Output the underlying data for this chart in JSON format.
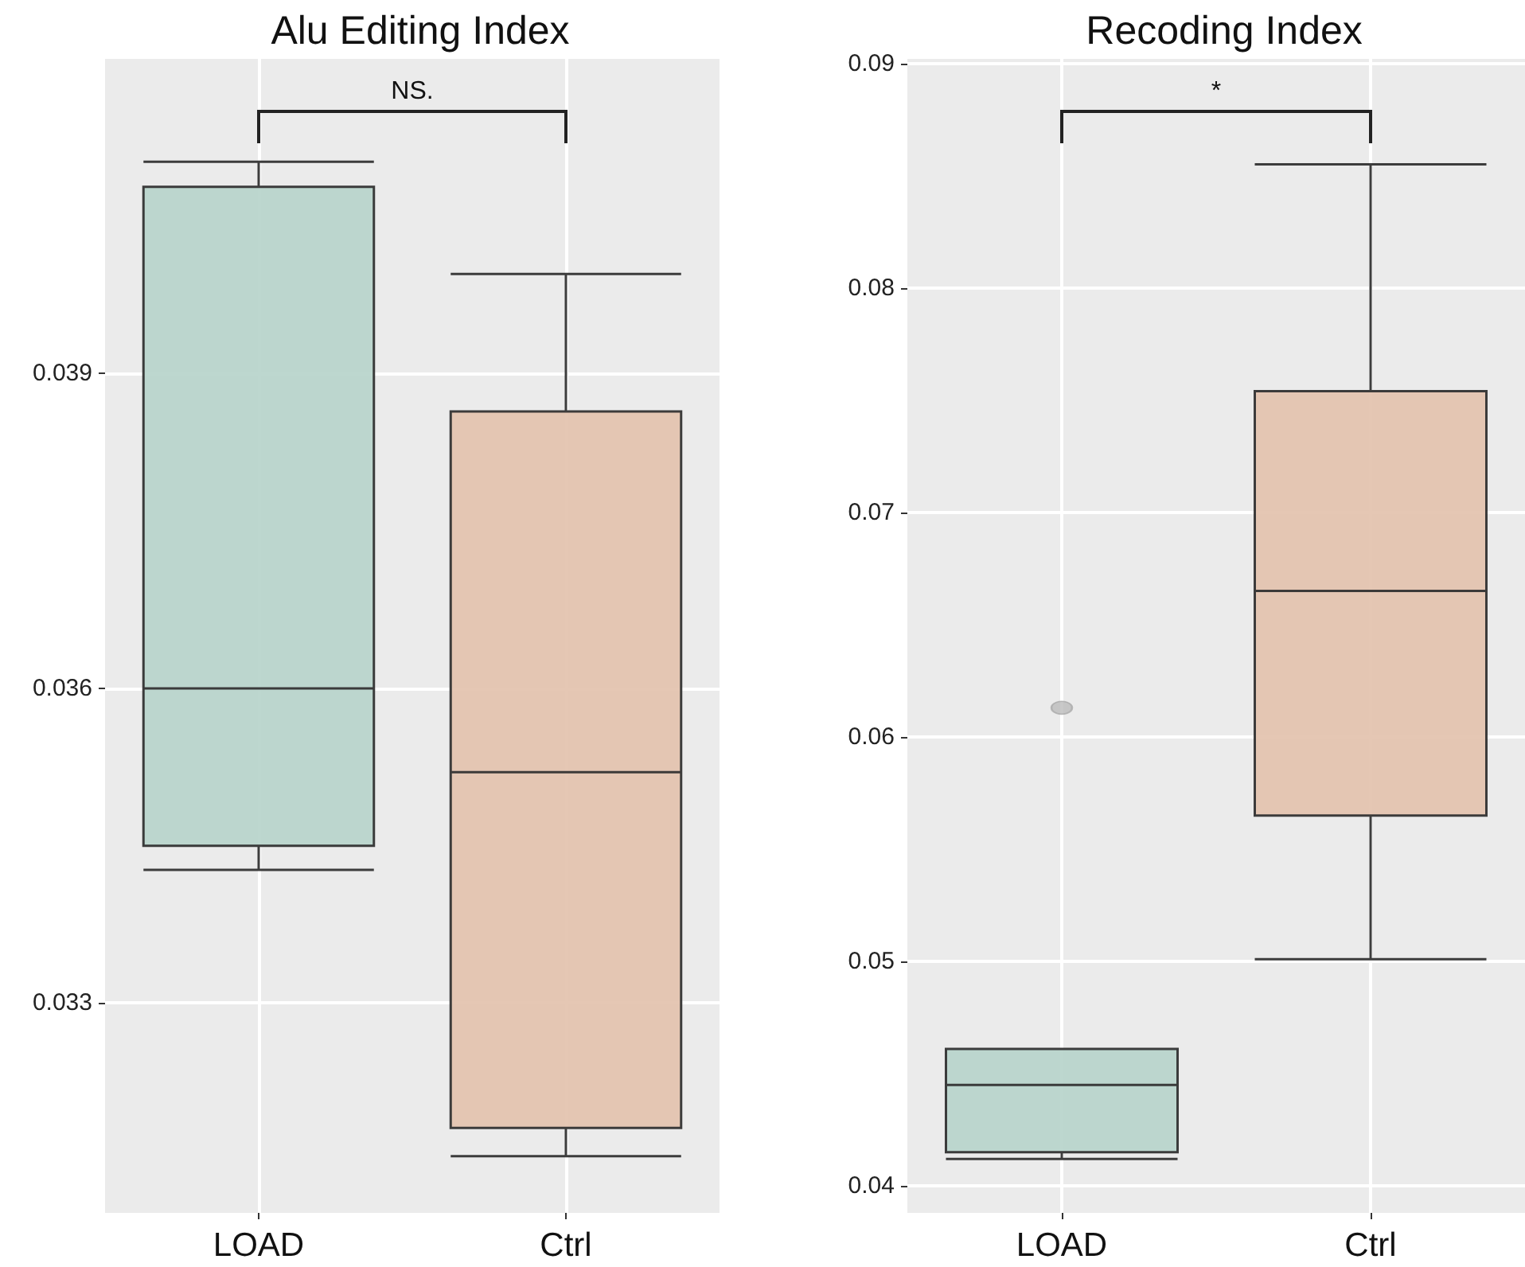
{
  "chart_data": [
    {
      "type": "box",
      "title": "Alu Editing Index",
      "categories": [
        "LOAD",
        "Ctrl"
      ],
      "ylim": [
        0.031,
        0.042
      ],
      "yticks": [
        0.033,
        0.036,
        0.039
      ],
      "grid": true,
      "annotations": [
        "NS."
      ],
      "series": [
        {
          "colors": [
            "#b9d5cc",
            "#e4c4b0"
          ],
          "boxes": [
            {
              "low": 0.03427,
              "q1": 0.0345,
              "median": 0.036,
              "q3": 0.04078,
              "high": 0.04102
            },
            {
              "low": 0.03154,
              "q1": 0.03181,
              "median": 0.0352,
              "q3": 0.03864,
              "high": 0.03995
            }
          ]
        }
      ]
    },
    {
      "type": "box",
      "title": "Recoding Index",
      "categories": [
        "LOAD",
        "Ctrl"
      ],
      "ylim": [
        0.0388,
        0.0902
      ],
      "yticks": [
        0.04,
        0.05,
        0.06,
        0.07,
        0.08,
        0.09
      ],
      "grid": true,
      "annotations": [
        "*"
      ],
      "series": [
        {
          "colors": [
            "#b9d5cc",
            "#e4c4b0"
          ],
          "boxes": [
            {
              "low": 0.0412,
              "q1": 0.0415,
              "median": 0.0445,
              "q3": 0.0461,
              "high": 0.0461,
              "outliers": [
                0.0613
              ]
            },
            {
              "low": 0.0501,
              "q1": 0.0565,
              "median": 0.0665,
              "q3": 0.0754,
              "high": 0.0855
            }
          ]
        }
      ]
    }
  ]
}
